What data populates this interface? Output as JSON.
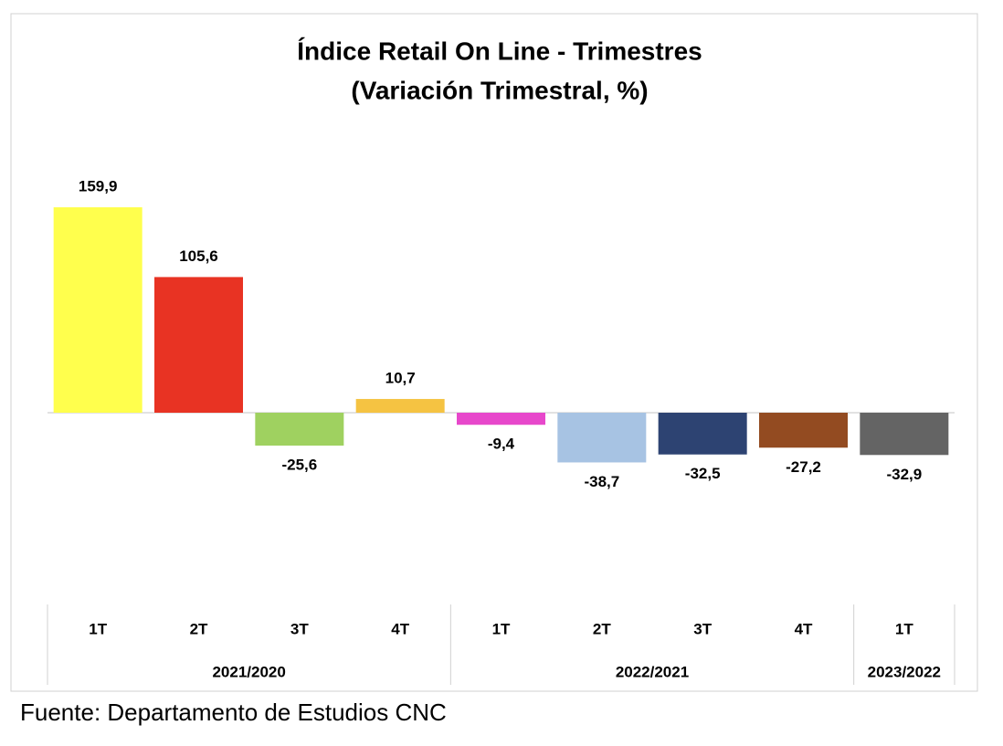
{
  "chart_data": {
    "type": "bar",
    "title": "Índice Retail On Line - Trimestres",
    "subtitle": "(Variación Trimestral, %)",
    "groups": [
      {
        "name": "2021/2020",
        "categories": [
          "1T",
          "2T",
          "3T",
          "4T"
        ],
        "values": [
          159.9,
          105.6,
          -25.6,
          10.7
        ],
        "value_labels": [
          "159,9",
          "105,6",
          "-25,6",
          "10,7"
        ],
        "colors": [
          "#ffff4d",
          "#e83323",
          "#9fd160",
          "#f5c342"
        ]
      },
      {
        "name": "2022/2021",
        "categories": [
          "1T",
          "2T",
          "3T",
          "4T"
        ],
        "values": [
          -9.4,
          -38.7,
          -32.5,
          -27.2
        ],
        "value_labels": [
          "-9,4",
          "-38,7",
          "-32,5",
          "-27,2"
        ],
        "colors": [
          "#e748cb",
          "#a7c3e3",
          "#2d4372",
          "#934b21"
        ]
      },
      {
        "name": "2023/2022",
        "categories": [
          "1T"
        ],
        "values": [
          -32.9
        ],
        "value_labels": [
          "-32,9"
        ],
        "colors": [
          "#646464"
        ]
      }
    ],
    "source": "Fuente: Departamento de Estudios CNC"
  }
}
